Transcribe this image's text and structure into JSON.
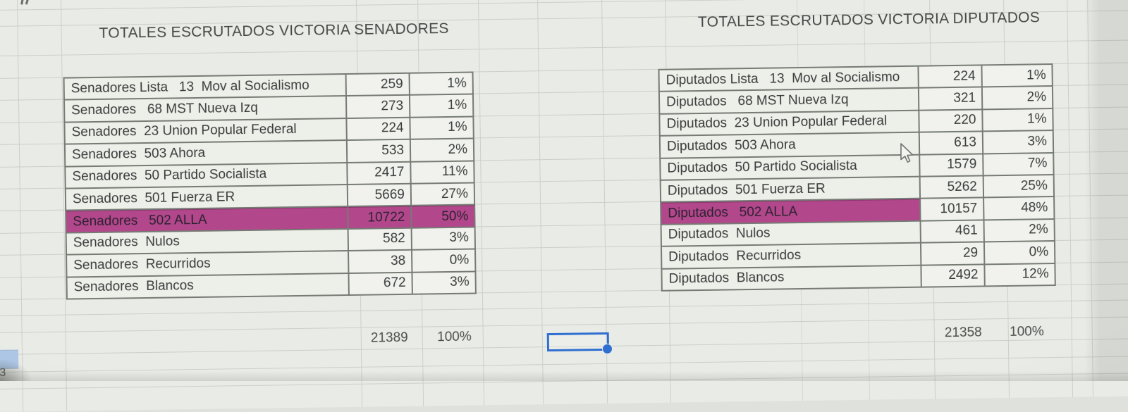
{
  "senadores": {
    "title": "TOTALES ESCRUTADOS VICTORIA SENADORES",
    "rows": [
      {
        "label": "Senadores Lista   13  Mov al Socialismo",
        "votes": "259",
        "pct": "1%",
        "highlight": "none"
      },
      {
        "label": "Senadores   68 MST Nueva Izq",
        "votes": "273",
        "pct": "1%",
        "highlight": "none"
      },
      {
        "label": "Senadores  23 Union Popular Federal",
        "votes": "224",
        "pct": "1%",
        "highlight": "none"
      },
      {
        "label": "Senadores  503 Ahora",
        "votes": "533",
        "pct": "2%",
        "highlight": "none"
      },
      {
        "label": "Senadores  50 Partido Socialista",
        "votes": "2417",
        "pct": "11%",
        "highlight": "none"
      },
      {
        "label": "Senadores  501 Fuerza ER",
        "votes": "5669",
        "pct": "27%",
        "highlight": "none"
      },
      {
        "label": "Senadores   502 ALLA",
        "votes": "10722",
        "pct": "50%",
        "highlight": "row"
      },
      {
        "label": "Senadores  Nulos",
        "votes": "582",
        "pct": "3%",
        "highlight": "none"
      },
      {
        "label": "Senadores  Recurridos",
        "votes": "38",
        "pct": "0%",
        "highlight": "none"
      },
      {
        "label": "Senadores  Blancos",
        "votes": "672",
        "pct": "3%",
        "highlight": "none"
      }
    ],
    "total_votes": "21389",
    "total_pct": "100%"
  },
  "diputados": {
    "title": "TOTALES ESCRUTADOS VICTORIA DIPUTADOS",
    "rows": [
      {
        "label": "Diputados Lista   13  Mov al Socialismo",
        "votes": "224",
        "pct": "1%",
        "highlight": "none"
      },
      {
        "label": "Diputados   68 MST Nueva Izq",
        "votes": "321",
        "pct": "2%",
        "highlight": "none"
      },
      {
        "label": "Diputados  23 Union Popular Federal",
        "votes": "220",
        "pct": "1%",
        "highlight": "none"
      },
      {
        "label": "Diputados  503 Ahora",
        "votes": "613",
        "pct": "3%",
        "highlight": "none"
      },
      {
        "label": "Diputados  50 Partido Socialista",
        "votes": "1579",
        "pct": "7%",
        "highlight": "none"
      },
      {
        "label": "Diputados  501 Fuerza ER",
        "votes": "5262",
        "pct": "25%",
        "highlight": "none"
      },
      {
        "label": "Diputados   502 ALLA",
        "votes": "10157",
        "pct": "48%",
        "highlight": "label"
      },
      {
        "label": "Diputados  Nulos",
        "votes": "461",
        "pct": "2%",
        "highlight": "none"
      },
      {
        "label": "Diputados  Recurridos",
        "votes": "29",
        "pct": "0%",
        "highlight": "none"
      },
      {
        "label": "Diputados  Blancos",
        "votes": "2492",
        "pct": "12%",
        "highlight": "none"
      }
    ],
    "total_votes": "21358",
    "total_pct": "100%"
  },
  "sheet": {
    "row_header_label": "3"
  },
  "colors": {
    "highlight_magenta": "#b2478c",
    "selection_blue": "#2f6fd0",
    "row_header_blue": "#aec7e6",
    "background": "#e9ebe6"
  }
}
